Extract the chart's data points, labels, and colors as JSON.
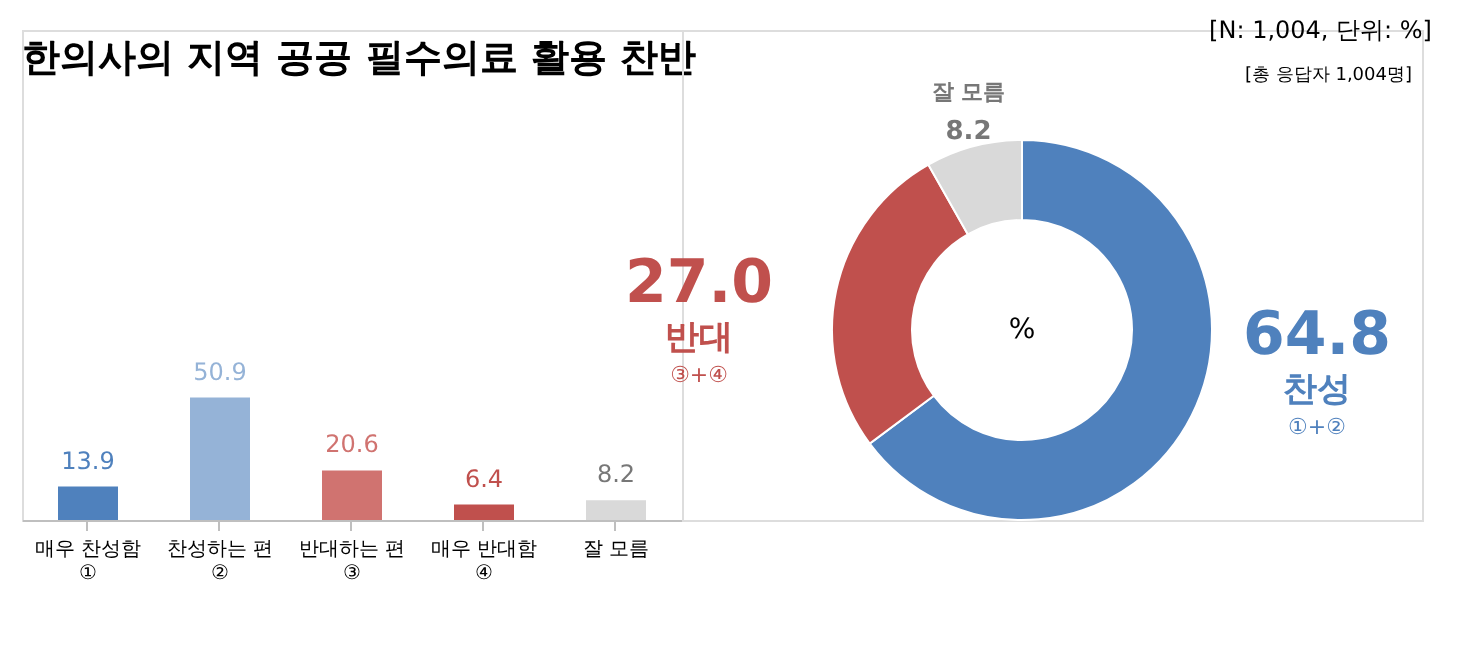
{
  "chart_data": [
    {
      "type": "bar",
      "title": "한의사의 지역 공공 필수의료 활용 찬반",
      "categories": [
        "매우 찬성함\n①",
        "찬성하는 편\n②",
        "반대하는 편\n③",
        "매우 반대함\n④",
        "잘 모름"
      ],
      "values": [
        13.9,
        50.9,
        20.6,
        6.4,
        8.2
      ],
      "colors": [
        "#4f81bd",
        "#95b3d7",
        "#d07370",
        "#c0504d",
        "#d9d9d9"
      ],
      "data_labels": true
    },
    {
      "type": "donut",
      "categories": [
        "찬성",
        "반대",
        "잘 모름"
      ],
      "values": [
        64.8,
        27.0,
        8.2
      ],
      "colors": [
        "#4f81bd",
        "#c0504d",
        "#d9d9d9"
      ],
      "value_labels": [
        "64.8",
        "27.0",
        "8.2"
      ],
      "annotations": [
        "[N: 1,004, 단위: %]",
        "[총 응답자 1,004명]",
        "%",
        "①+②",
        "③+④"
      ]
    }
  ]
}
